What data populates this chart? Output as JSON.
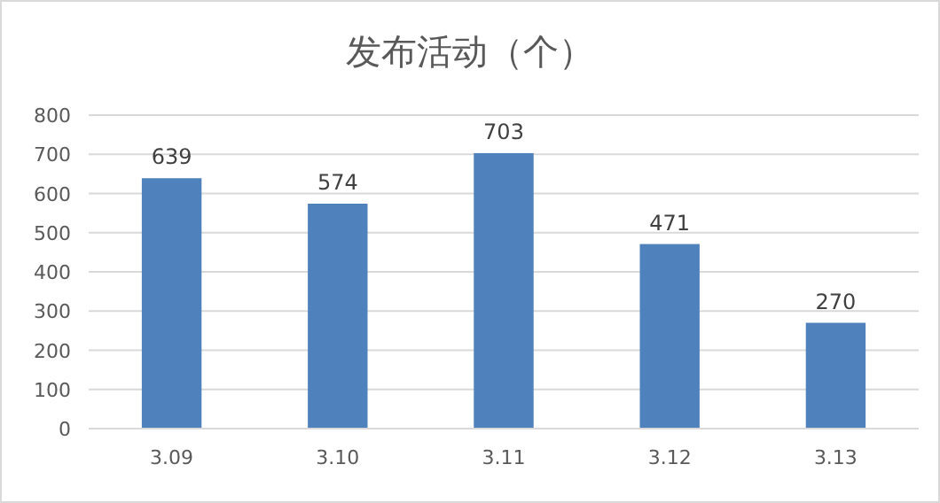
{
  "chart_data": {
    "type": "bar",
    "title": "发布活动（个）",
    "categories": [
      "3.09",
      "3.10",
      "3.11",
      "3.12",
      "3.13"
    ],
    "values": [
      639,
      574,
      703,
      471,
      270
    ],
    "color": "#4f81bd",
    "ylim": [
      0,
      800
    ],
    "yticks": [
      0,
      100,
      200,
      300,
      400,
      500,
      600,
      700,
      800
    ],
    "grid": "y",
    "data_labels": true
  }
}
